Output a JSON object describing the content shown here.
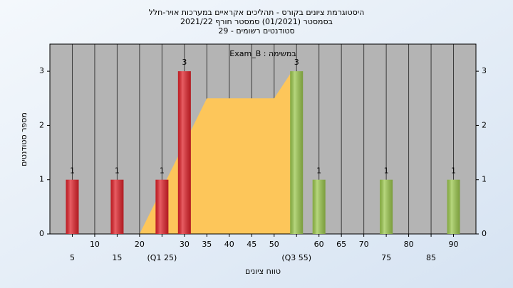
{
  "chart_data": {
    "type": "bar",
    "title_lines": [
      "היסטוגרמת ציונים בקורס - תהליכים אקראיים במערכות אויר-חלל",
      "בסמסטר (01/2021)  סמסטר חורף 2021/22",
      "סטודנטים רשומים - 29"
    ],
    "annotation": "במשימה : Exam_B",
    "xlabel": "טווח ציונים",
    "ylabel": "מספר סטודנטים",
    "x": [
      5,
      15,
      25,
      30,
      55,
      60,
      75,
      90
    ],
    "values": [
      1,
      1,
      1,
      3,
      3,
      1,
      1,
      1
    ],
    "colors": [
      "#e0222a",
      "#e0222a",
      "#e0222a",
      "#e0222a",
      "#9cc84e",
      "#9cc84e",
      "#9cc84e",
      "#9cc84e"
    ],
    "area": {
      "x": [
        20,
        35,
        50,
        54,
        54
      ],
      "values": [
        0,
        2.5,
        2.5,
        3,
        0
      ],
      "color": "#fdc65a"
    },
    "xlim": [
      0,
      95
    ],
    "ylim": [
      0,
      3.5
    ],
    "xticks": [
      5,
      10,
      15,
      20,
      {
        "value": 25,
        "label": "(Q1 25)"
      },
      30,
      35,
      40,
      45,
      50,
      {
        "value": 55,
        "label": "(Q3 55)"
      },
      60,
      65,
      70,
      75,
      80,
      85,
      90
    ],
    "yticks": [
      0,
      1,
      2,
      3
    ],
    "grid": true,
    "right_axis": true
  }
}
